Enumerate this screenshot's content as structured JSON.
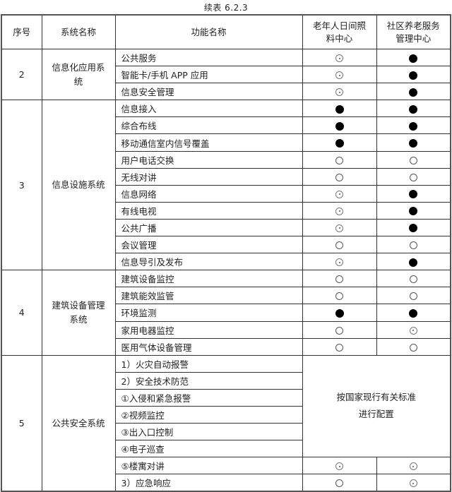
{
  "title": "续表 6.2.3",
  "headers": [
    "序号",
    "系统名称",
    "功能名称",
    "老年人日间照料中心",
    "社区养老服务管理中心"
  ],
  "legend_icons": {
    "full": "filled-circle",
    "dot": "dotted-circle",
    "empty": "empty-circle"
  },
  "groups": [
    {
      "no": "2",
      "name": "信息化应用系统",
      "rows": [
        {
          "fn": "公共服务",
          "a": "dot",
          "b": "full"
        },
        {
          "fn": "智能卡/手机 APP 应用",
          "a": "dot",
          "b": "full"
        },
        {
          "fn": "信息安全管理",
          "a": "dot",
          "b": "full"
        }
      ]
    },
    {
      "no": "3",
      "name": "信息设施系统",
      "rows": [
        {
          "fn": "信息接入",
          "a": "full",
          "b": "full"
        },
        {
          "fn": "综合布线",
          "a": "full",
          "b": "full"
        },
        {
          "fn": "移动通信室内信号覆盖",
          "a": "full",
          "b": "full"
        },
        {
          "fn": "用户电话交换",
          "a": "empty",
          "b": "empty"
        },
        {
          "fn": "无线对讲",
          "a": "empty",
          "b": "empty"
        },
        {
          "fn": "信息网络",
          "a": "dot",
          "b": "full"
        },
        {
          "fn": "有线电视",
          "a": "dot",
          "b": "full"
        },
        {
          "fn": "公共广播",
          "a": "dot",
          "b": "full"
        },
        {
          "fn": "会议管理",
          "a": "empty",
          "b": "empty"
        },
        {
          "fn": "信息导引及发布",
          "a": "dot",
          "b": "full"
        }
      ]
    },
    {
      "no": "4",
      "name": "建筑设备管理系统",
      "rows": [
        {
          "fn": "建筑设备监控",
          "a": "empty",
          "b": "empty"
        },
        {
          "fn": "建筑能效监管",
          "a": "empty",
          "b": "empty"
        },
        {
          "fn": "环境监测",
          "a": "full",
          "b": "full"
        },
        {
          "fn": "家用电器监控",
          "a": "empty",
          "b": "dot"
        },
        {
          "fn": "医用气体设备管理",
          "a": "empty",
          "b": "empty"
        }
      ]
    },
    {
      "no": "5",
      "name": "公共安全系统",
      "note": "按国家现行有关标准进行配置",
      "note_span": 6,
      "rows": [
        {
          "fn": "1）火灾自动报警"
        },
        {
          "fn": "2）安全技术防范"
        },
        {
          "fn": "①入侵和紧急报警"
        },
        {
          "fn": "②视频监控"
        },
        {
          "fn": "③出入口控制"
        },
        {
          "fn": "④电子巡查"
        },
        {
          "fn": "⑤楼寓对讲",
          "a": "dot",
          "b": "dot"
        },
        {
          "fn": "3）应急响应",
          "a": "empty",
          "b": "dot"
        }
      ]
    }
  ]
}
